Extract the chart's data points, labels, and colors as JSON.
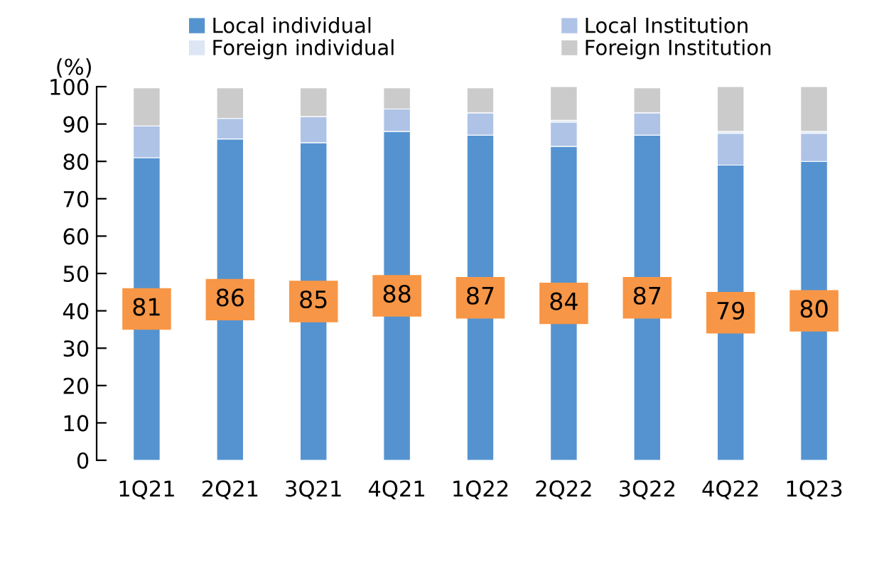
{
  "chart_data": {
    "type": "bar",
    "stacked": true,
    "ylabel": "(%)",
    "categories": [
      "1Q21",
      "2Q21",
      "3Q21",
      "4Q21",
      "1Q22",
      "2Q22",
      "3Q22",
      "4Q22",
      "1Q23"
    ],
    "series": [
      {
        "name": "Local individual",
        "color": "#5593d0",
        "values": [
          81,
          86,
          85,
          88,
          87,
          84,
          87,
          79,
          80
        ],
        "value_labels": [
          "81",
          "86",
          "85",
          "88",
          "87",
          "84",
          "87",
          "79",
          "80"
        ]
      },
      {
        "name": "Local Institution",
        "color": "#aec3e6",
        "values": [
          8.5,
          5.5,
          7,
          6,
          6,
          6.5,
          6,
          8.5,
          7.5
        ]
      },
      {
        "name": "Foreign individual",
        "color": "#dde6f5",
        "values": [
          null,
          null,
          null,
          null,
          null,
          0.5,
          null,
          0.5,
          0.5
        ]
      },
      {
        "name": "Foreign Institution",
        "color": "#cbcbcb",
        "values": [
          10.2,
          8.2,
          7.7,
          5.7,
          6.7,
          9,
          6.7,
          12,
          12
        ]
      }
    ],
    "ylim": [
      0,
      100
    ],
    "yticks": [
      0,
      10,
      20,
      30,
      40,
      50,
      60,
      70,
      80,
      90,
      100
    ],
    "grid": false,
    "legend": "top"
  }
}
